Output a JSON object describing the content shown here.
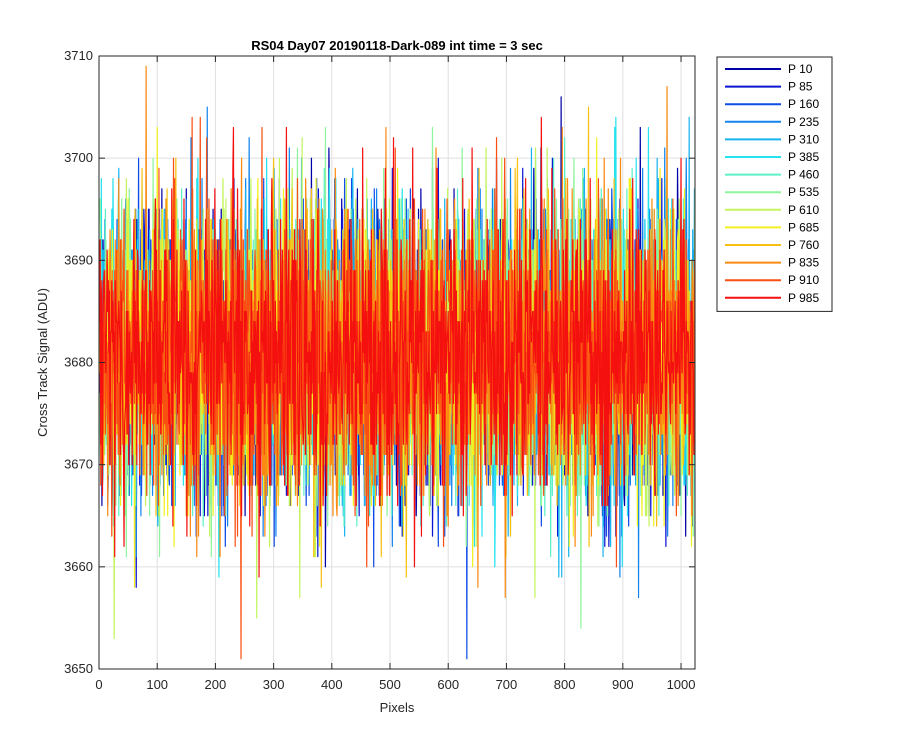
{
  "chart_data": {
    "type": "line",
    "title": "RS04 Day07 20190118-Dark-089 int time = 3 sec",
    "xlabel": "Pixels",
    "ylabel": "Cross Track Signal (ADU)",
    "xlim": [
      0,
      1024
    ],
    "ylim": [
      3650,
      3710
    ],
    "xticks": [
      0,
      100,
      200,
      300,
      400,
      500,
      600,
      700,
      800,
      900,
      1000
    ],
    "yticks": [
      3650,
      3660,
      3670,
      3680,
      3690,
      3700,
      3710
    ],
    "grid": true,
    "legend_position": "outside-right-top",
    "x_range_points": [
      1,
      1024
    ],
    "noise_model": {
      "mean": 3681,
      "std": 7,
      "min_clip": 3650,
      "max_clip": 3710
    },
    "series": [
      {
        "name": "P 10",
        "color": "#0000a8"
      },
      {
        "name": "P 85",
        "color": "#0a14d2"
      },
      {
        "name": "P 160",
        "color": "#0f4be6"
      },
      {
        "name": "P 235",
        "color": "#1284ee"
      },
      {
        "name": "P 310",
        "color": "#19b4f0"
      },
      {
        "name": "P 385",
        "color": "#25e2ee"
      },
      {
        "name": "P 460",
        "color": "#5df0c8"
      },
      {
        "name": "P 535",
        "color": "#8ef59c"
      },
      {
        "name": "P 610",
        "color": "#c3f55e"
      },
      {
        "name": "P 685",
        "color": "#f2f01e"
      },
      {
        "name": "P 760",
        "color": "#f8c010"
      },
      {
        "name": "P 835",
        "color": "#fa8a12"
      },
      {
        "name": "P 910",
        "color": "#fa4f12"
      },
      {
        "name": "P 985",
        "color": "#f51010"
      }
    ]
  }
}
